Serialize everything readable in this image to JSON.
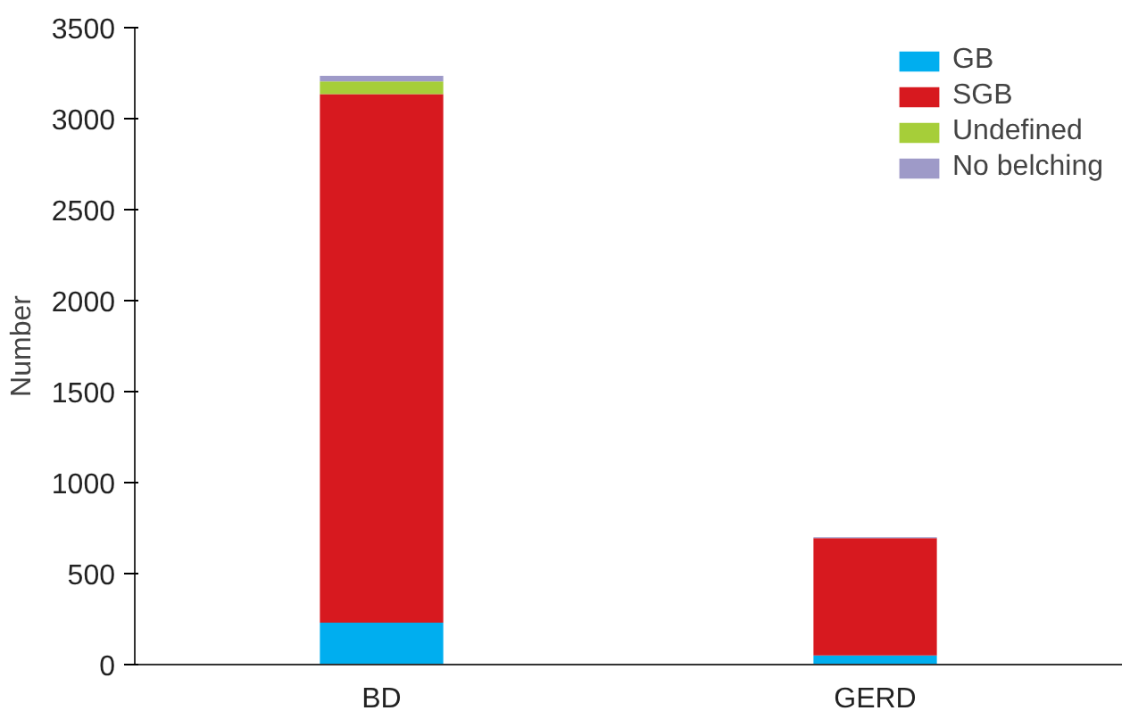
{
  "chart_data": {
    "type": "bar",
    "stacked": true,
    "ylabel": "Number",
    "categories": [
      "BD",
      "GERD"
    ],
    "series": [
      {
        "name": "GB",
        "color": "#00aeef",
        "values": [
          230,
          50
        ]
      },
      {
        "name": "SGB",
        "color": "#d7191f",
        "values": [
          2905,
          645
        ]
      },
      {
        "name": "Undefined",
        "color": "#a6ce39",
        "values": [
          70,
          0
        ]
      },
      {
        "name": "No belching",
        "color": "#9e9ac8",
        "values": [
          30,
          5
        ]
      }
    ],
    "ylim": [
      0,
      3500
    ],
    "yticks": [
      0,
      500,
      1000,
      1500,
      2000,
      2500,
      3000,
      3500
    ],
    "grid": false,
    "legend": "top right"
  }
}
